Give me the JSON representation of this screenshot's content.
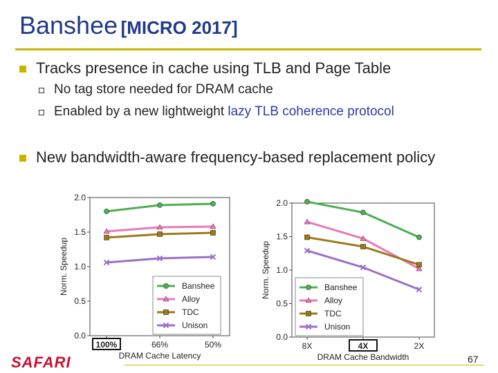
{
  "slide": {
    "title_main": "Banshee",
    "title_sub": "[MICRO 2017]",
    "bullets": [
      {
        "text": "Tracks presence in cache using TLB and Page Table",
        "subs": [
          {
            "text": "No tag store needed for DRAM cache"
          },
          {
            "pre": "Enabled by a new lightweight ",
            "hl": "lazy TLB coherence protocol"
          }
        ]
      },
      {
        "text": "New bandwidth-aware frequency-based replacement policy",
        "subs": []
      }
    ],
    "footer_logo": "SAFARI",
    "page_number": "67"
  },
  "colors": {
    "Banshee": "#4caf50",
    "Alloy": "#e879b5",
    "TDC": "#9b7a1b",
    "Unison": "#9b6fc9"
  },
  "chart_data": [
    {
      "type": "line",
      "xlabel": "DRAM Cache Latency",
      "ylabel": "Norm. Speedup",
      "x": [
        "100%",
        "66%",
        "50%"
      ],
      "highlight_x": "100%",
      "ylim": [
        0,
        2.0
      ],
      "yticks": [
        "0.0",
        "0.5",
        "1.0",
        "1.5",
        "2.0"
      ],
      "legend": "bottom-right",
      "series": [
        {
          "name": "Banshee",
          "marker": "circle",
          "values": [
            1.8,
            1.89,
            1.91
          ]
        },
        {
          "name": "Alloy",
          "marker": "triangle",
          "values": [
            1.51,
            1.57,
            1.58
          ]
        },
        {
          "name": "TDC",
          "marker": "square",
          "values": [
            1.42,
            1.47,
            1.49
          ]
        },
        {
          "name": "Unison",
          "marker": "x",
          "values": [
            1.06,
            1.12,
            1.14
          ]
        }
      ]
    },
    {
      "type": "line",
      "xlabel": "DRAM Cache Bandwidth",
      "ylabel": "Norm. Speedup",
      "x": [
        "8X",
        "4X",
        "2X"
      ],
      "highlight_x": "4X",
      "ylim": [
        0,
        2.0
      ],
      "yticks": [
        "0.0",
        "0.5",
        "1.0",
        "1.5",
        "2.0"
      ],
      "legend": "bottom-left",
      "series": [
        {
          "name": "Banshee",
          "marker": "circle",
          "values": [
            2.02,
            1.86,
            1.49
          ]
        },
        {
          "name": "Alloy",
          "marker": "triangle",
          "values": [
            1.72,
            1.47,
            1.02
          ]
        },
        {
          "name": "TDC",
          "marker": "square",
          "values": [
            1.49,
            1.35,
            1.08
          ]
        },
        {
          "name": "Unison",
          "marker": "x",
          "values": [
            1.29,
            1.04,
            0.71
          ]
        }
      ]
    }
  ]
}
